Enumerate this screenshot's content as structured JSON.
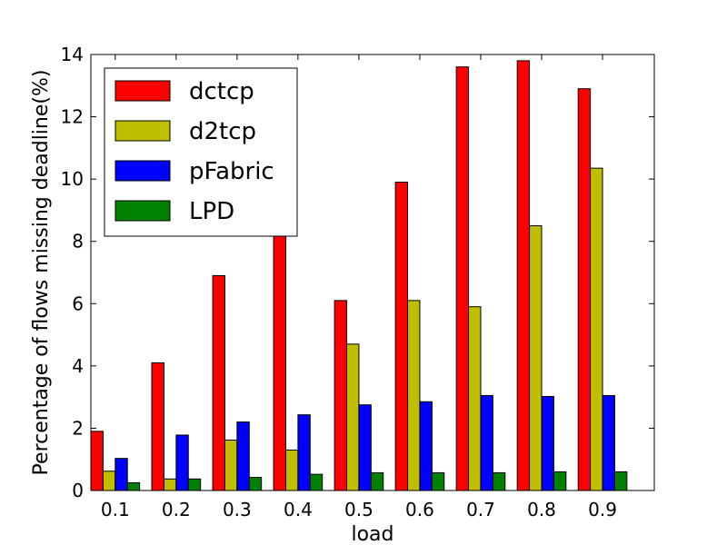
{
  "chart_data": {
    "type": "bar",
    "title": "",
    "xlabel": "load",
    "ylabel": "Percentage of flows missing deadline(%)",
    "categories": [
      "0.1",
      "0.2",
      "0.3",
      "0.4",
      "0.5",
      "0.6",
      "0.7",
      "0.8",
      "0.9"
    ],
    "ylim": [
      0,
      14
    ],
    "yticks": [
      "0",
      "2",
      "4",
      "6",
      "8",
      "10",
      "12",
      "14"
    ],
    "grid": false,
    "legend_position": "top-left",
    "series": [
      {
        "name": "dctcp",
        "color": "#ff0000",
        "values": [
          1.9,
          4.1,
          6.9,
          8.3,
          6.1,
          9.9,
          13.6,
          13.8,
          12.9
        ]
      },
      {
        "name": "d2tcp",
        "color": "#bfbf00",
        "values": [
          0.62,
          0.37,
          1.62,
          1.3,
          4.7,
          6.1,
          5.9,
          8.5,
          10.35
        ]
      },
      {
        "name": "pFabric",
        "color": "#0000ff",
        "values": [
          1.03,
          1.78,
          2.2,
          2.43,
          2.75,
          2.85,
          3.05,
          3.02,
          3.05
        ]
      },
      {
        "name": "LPD",
        "color": "#008000",
        "values": [
          0.25,
          0.37,
          0.42,
          0.52,
          0.57,
          0.57,
          0.57,
          0.6,
          0.6
        ]
      }
    ]
  }
}
